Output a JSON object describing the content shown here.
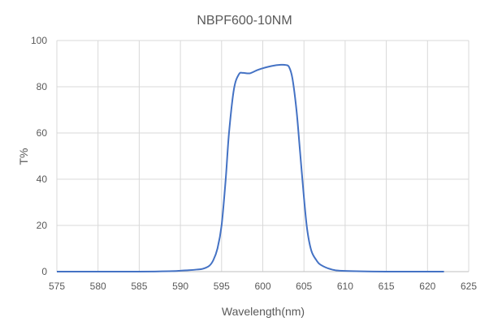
{
  "chart_data": {
    "type": "line",
    "title": "NBPF600-10NM",
    "xlabel": "Wavelength(nm)",
    "ylabel": "T%",
    "xlim": [
      575,
      625
    ],
    "ylim": [
      0,
      100
    ],
    "xticks": [
      575,
      580,
      585,
      590,
      595,
      600,
      605,
      610,
      615,
      620,
      625
    ],
    "yticks": [
      0,
      20,
      40,
      60,
      80,
      100
    ],
    "grid": true,
    "line_color": "#4472C4",
    "series": [
      {
        "name": "T%",
        "x": [
          575,
          585,
          589,
          590,
          591,
          592,
          592.7,
          593.5,
          594,
          594.5,
          595,
          595.5,
          595.9,
          596.5,
          597.1,
          597.6,
          598.4,
          599.2,
          600,
          601.1,
          602.2,
          602.8,
          603.2,
          603.6,
          604.1,
          604.5,
          605,
          605.4,
          605.9,
          606.5,
          607,
          608.3,
          610,
          615,
          622
        ],
        "y": [
          0,
          0,
          0.2,
          0.4,
          0.6,
          0.9,
          1.2,
          2.5,
          5,
          10,
          20,
          40,
          60,
          79,
          85.4,
          86,
          85.8,
          87,
          88,
          89,
          89.5,
          89.4,
          88.5,
          83.6,
          69.6,
          53,
          32,
          18,
          9,
          5,
          3,
          1,
          0.3,
          0,
          0
        ]
      }
    ]
  }
}
